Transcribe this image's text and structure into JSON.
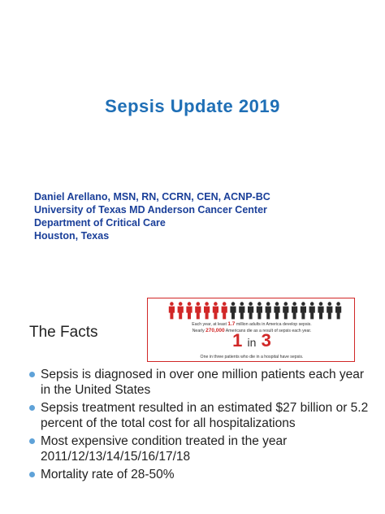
{
  "slide1": {
    "title": "Sepsis Update 2019",
    "author_lines": [
      "Daniel Arellano, MSN, RN, CCRN, CEN, ACNP-BC",
      "University of Texas MD Anderson Cancer Center",
      "Department of Critical Care",
      "Houston, Texas"
    ]
  },
  "slide2": {
    "title": "The Facts",
    "infographic": {
      "figure_count": 20,
      "red_figure_count": 7,
      "line1_prefix": "Each year, at least ",
      "line1_highlight": "1.7",
      "line1_suffix": " million adults in America develop sepsis.",
      "line2_prefix": "Nearly ",
      "line2_highlight": "270,000",
      "line2_suffix": " Americans die as a result of sepsis each year.",
      "ratio_left": "1",
      "ratio_mid": "in",
      "ratio_right": "3",
      "line3": "One in three patients who die in a hospital have sepsis.",
      "colors": {
        "red": "#d12727",
        "dark": "#2b2b2b"
      }
    },
    "bullets": [
      "Sepsis is diagnosed in over one million patients each year in the United States",
      "Sepsis treatment resulted in an estimated $27 billion or 5.2 percent of the total cost for all hospitalizations",
      "Most expensive condition treated in the year 2011/12/13/14/15/16/17/18",
      "Mortality rate of 28-50%"
    ]
  }
}
